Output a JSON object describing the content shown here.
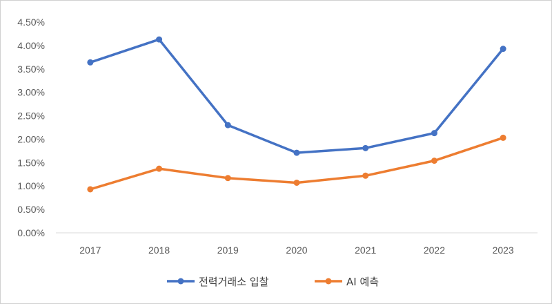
{
  "chart_data": {
    "type": "line",
    "categories": [
      "2017",
      "2018",
      "2019",
      "2020",
      "2021",
      "2022",
      "2023"
    ],
    "series": [
      {
        "name": "전력거래소 입찰",
        "color": "#4472C4",
        "values": [
          3.64,
          4.13,
          2.3,
          1.71,
          1.81,
          2.13,
          3.93
        ]
      },
      {
        "name": "AI 예측",
        "color": "#ED7D31",
        "values": [
          0.93,
          1.37,
          1.17,
          1.07,
          1.22,
          1.54,
          2.03
        ]
      }
    ],
    "y_unit": "percent",
    "ylim": [
      0,
      4.5
    ],
    "y_ticks": [
      "0.00%",
      "0.50%",
      "1.00%",
      "1.50%",
      "2.00%",
      "2.50%",
      "3.00%",
      "3.50%",
      "4.00%",
      "4.50%"
    ],
    "grid": false,
    "legend_position": "bottom",
    "markers": "circle"
  }
}
